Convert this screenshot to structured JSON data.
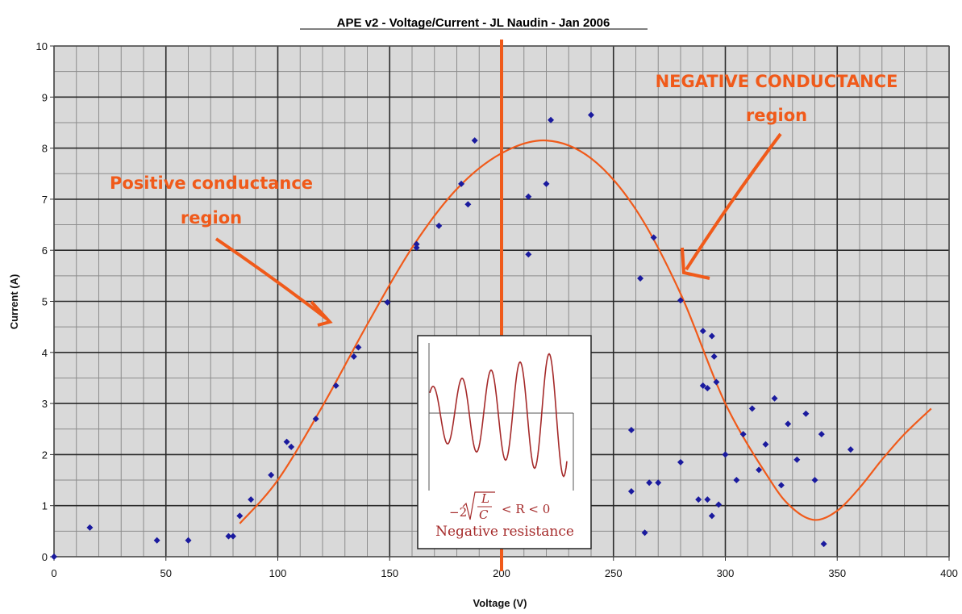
{
  "chart_data": {
    "type": "scatter",
    "title": "APE v2 - Voltage/Current - JL Naudin - Jan 2006",
    "xlabel": "Voltage (V)",
    "ylabel": "Current (A)",
    "xlim": [
      0,
      400
    ],
    "ylim": [
      0,
      10
    ],
    "xticks": [
      0,
      50,
      100,
      150,
      200,
      250,
      300,
      350,
      400
    ],
    "yticks": [
      0,
      1,
      2,
      3,
      4,
      5,
      6,
      7,
      8,
      9,
      10
    ],
    "grid": true,
    "marker_color": "#1a1a9e",
    "fit_color": "#f05a1a",
    "vertical_line_x": 200,
    "points": [
      [
        0,
        0
      ],
      [
        16,
        0.57
      ],
      [
        46,
        0.32
      ],
      [
        60,
        0.32
      ],
      [
        78,
        0.4
      ],
      [
        80,
        0.4
      ],
      [
        83,
        0.8
      ],
      [
        88,
        1.12
      ],
      [
        97,
        1.6
      ],
      [
        104,
        2.25
      ],
      [
        106,
        2.15
      ],
      [
        117,
        2.7
      ],
      [
        126,
        3.35
      ],
      [
        134,
        3.92
      ],
      [
        136,
        4.1
      ],
      [
        149,
        4.98
      ],
      [
        162,
        6.12
      ],
      [
        162,
        6.05
      ],
      [
        172,
        6.48
      ],
      [
        182,
        7.3
      ],
      [
        185,
        6.9
      ],
      [
        188,
        8.15
      ],
      [
        212,
        7.05
      ],
      [
        212,
        5.92
      ],
      [
        220,
        7.3
      ],
      [
        222,
        8.55
      ],
      [
        240,
        8.65
      ],
      [
        258,
        2.48
      ],
      [
        258,
        1.28
      ],
      [
        262,
        5.45
      ],
      [
        264,
        0.47
      ],
      [
        266,
        1.45
      ],
      [
        268,
        6.25
      ],
      [
        270,
        1.45
      ],
      [
        280,
        5.02
      ],
      [
        280,
        1.85
      ],
      [
        288,
        1.12
      ],
      [
        290,
        4.42
      ],
      [
        290,
        3.35
      ],
      [
        292,
        1.12
      ],
      [
        292,
        3.3
      ],
      [
        294,
        0.8
      ],
      [
        294,
        4.32
      ],
      [
        295,
        3.92
      ],
      [
        296,
        3.42
      ],
      [
        297,
        1.02
      ],
      [
        300,
        2.0
      ],
      [
        305,
        1.5
      ],
      [
        308,
        2.4
      ],
      [
        312,
        2.9
      ],
      [
        315,
        1.7
      ],
      [
        318,
        2.2
      ],
      [
        322,
        3.1
      ],
      [
        325,
        1.4
      ],
      [
        328,
        2.6
      ],
      [
        332,
        1.9
      ],
      [
        336,
        2.8
      ],
      [
        340,
        1.5
      ],
      [
        343,
        2.4
      ],
      [
        344,
        0.25
      ],
      [
        356,
        2.1
      ]
    ],
    "fit_curve": [
      [
        83,
        0.65
      ],
      [
        100,
        1.5
      ],
      [
        120,
        2.95
      ],
      [
        140,
        4.55
      ],
      [
        160,
        6.05
      ],
      [
        180,
        7.2
      ],
      [
        200,
        7.9
      ],
      [
        220,
        8.15
      ],
      [
        240,
        7.8
      ],
      [
        260,
        6.8
      ],
      [
        280,
        5.15
      ],
      [
        300,
        3.0
      ],
      [
        320,
        1.5
      ],
      [
        330,
        0.95
      ],
      [
        340,
        0.72
      ],
      [
        350,
        0.9
      ],
      [
        360,
        1.35
      ],
      [
        370,
        1.9
      ],
      [
        380,
        2.4
      ],
      [
        392,
        2.9
      ]
    ],
    "annotations": {
      "positive_line1": "Positive conductance",
      "positive_line2": "region",
      "negative_line1": "NEGATIVE CONDUCTANCE",
      "negative_line2": "region"
    },
    "inset": {
      "caption": "Negative resistance",
      "formula_prefix": "−2",
      "formula_L": "L",
      "formula_C": "C",
      "formula_suffix": "<  R  <  0"
    }
  }
}
